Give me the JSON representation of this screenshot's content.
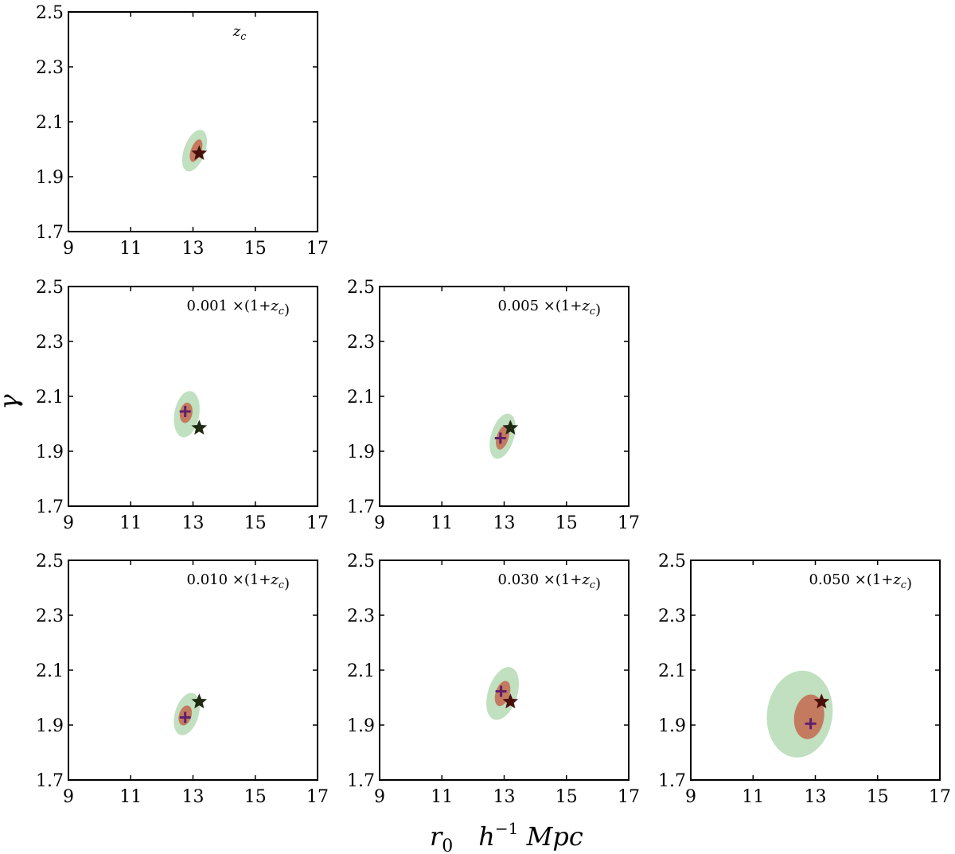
{
  "chart_data": {
    "type": "scatter",
    "xlabel": "r_0   h^-1 Mpc",
    "ylabel": "γ",
    "xlim": [
      9,
      17
    ],
    "ylim": [
      1.7,
      2.5
    ],
    "xticks": [
      "9",
      "11",
      "13",
      "15",
      "17"
    ],
    "yticks": [
      "1.7",
      "1.9",
      "2.1",
      "2.3",
      "2.5"
    ],
    "colors": {
      "outer_contour": "#c0e0c0",
      "inner_contour": "#c47a5f",
      "star": "#4a0f0a",
      "star_dark": "#1f2a12",
      "plus": "#5e1f6b",
      "axis": "#000000"
    },
    "panels": [
      {
        "label": "z_c",
        "star": [
          13.2,
          1.985
        ],
        "plus": null,
        "inner": {
          "center": [
            13.1,
            1.995
          ],
          "rx": 0.38,
          "ry": 0.165,
          "angle_deg": -70
        },
        "outer": {
          "center": [
            13.05,
            1.995
          ],
          "rx": 0.7,
          "ry": 0.34,
          "angle_deg": -70
        }
      },
      {
        "label": "0.001 ×(1+z_c)",
        "star": [
          13.2,
          1.985
        ],
        "plus": [
          12.75,
          2.045
        ],
        "inner": {
          "center": [
            12.78,
            2.04
          ],
          "rx": 0.33,
          "ry": 0.2,
          "angle_deg": -80
        },
        "outer": {
          "center": [
            12.8,
            2.035
          ],
          "rx": 0.75,
          "ry": 0.4,
          "angle_deg": -80
        }
      },
      {
        "label": "0.005 ×(1+z_c)",
        "star": [
          13.2,
          1.985
        ],
        "plus": [
          12.88,
          1.948
        ],
        "inner": {
          "center": [
            12.95,
            1.95
          ],
          "rx": 0.4,
          "ry": 0.19,
          "angle_deg": -73
        },
        "outer": {
          "center": [
            12.95,
            1.955
          ],
          "rx": 0.75,
          "ry": 0.37,
          "angle_deg": -73
        }
      },
      {
        "label": "0.010 ×(1+z_c)",
        "star": [
          13.2,
          1.985
        ],
        "plus": [
          12.75,
          1.928
        ],
        "inner": {
          "center": [
            12.75,
            1.935
          ],
          "rx": 0.33,
          "ry": 0.2,
          "angle_deg": -73
        },
        "outer": {
          "center": [
            12.8,
            1.94
          ],
          "rx": 0.7,
          "ry": 0.38,
          "angle_deg": -73
        }
      },
      {
        "label": "0.030 ×(1+z_c)",
        "star": [
          13.2,
          1.985
        ],
        "plus": [
          12.9,
          2.023
        ],
        "inner": {
          "center": [
            12.95,
            2.015
          ],
          "rx": 0.42,
          "ry": 0.225,
          "angle_deg": -72
        },
        "outer": {
          "center": [
            12.95,
            2.015
          ],
          "rx": 0.88,
          "ry": 0.47,
          "angle_deg": -72
        }
      },
      {
        "label": "0.050 ×(1+z_c)",
        "star": [
          13.2,
          1.985
        ],
        "plus": [
          12.85,
          1.905
        ],
        "inner": {
          "center": [
            12.8,
            1.93
          ],
          "rx": 0.72,
          "ry": 0.48,
          "angle_deg": -82
        },
        "outer": {
          "center": [
            12.5,
            1.94
          ],
          "rx": 1.4,
          "ry": 1.05,
          "angle_deg": -82
        }
      }
    ]
  }
}
